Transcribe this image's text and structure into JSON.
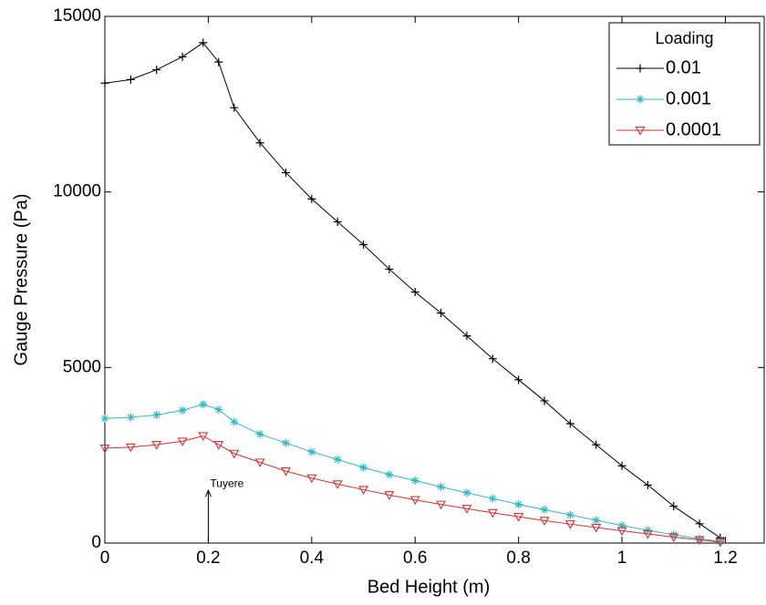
{
  "chart_data": {
    "type": "line",
    "x_label": "Bed Height (m)",
    "y_label": "Gauge Pressure (Pa)",
    "x": [
      0,
      0.05,
      0.1,
      0.15,
      0.19,
      0.22,
      0.25,
      0.3,
      0.35,
      0.4,
      0.45,
      0.5,
      0.55,
      0.6,
      0.65,
      0.7,
      0.75,
      0.8,
      0.85,
      0.9,
      0.95,
      1.0,
      1.05,
      1.1,
      1.15,
      1.19
    ],
    "series": [
      {
        "name": "0.01",
        "color": "#000000",
        "marker": "plus",
        "values": [
          13100,
          13200,
          13480,
          13850,
          14250,
          13700,
          12400,
          11400,
          10550,
          9800,
          9150,
          8500,
          7800,
          7150,
          6550,
          5900,
          5250,
          4650,
          4050,
          3400,
          2800,
          2200,
          1650,
          1050,
          550,
          150
        ]
      },
      {
        "name": "0.001",
        "color": "#33b8c0",
        "marker": "star",
        "values": [
          3550,
          3580,
          3650,
          3780,
          3950,
          3800,
          3450,
          3100,
          2850,
          2600,
          2380,
          2150,
          1950,
          1780,
          1600,
          1430,
          1270,
          1100,
          950,
          800,
          650,
          500,
          360,
          240,
          120,
          50
        ]
      },
      {
        "name": "0.0001",
        "color": "#d83030",
        "marker": "triangle-down",
        "values": [
          2700,
          2730,
          2800,
          2900,
          3050,
          2800,
          2550,
          2300,
          2050,
          1850,
          1680,
          1520,
          1370,
          1230,
          1100,
          980,
          860,
          750,
          640,
          540,
          440,
          350,
          260,
          170,
          90,
          30
        ]
      }
    ],
    "legend_title": "Loading",
    "legend": "upper right",
    "annotation": {
      "text": "Tuyere",
      "x": 0.2,
      "y": 1500
    },
    "xlim": [
      0,
      1.275
    ],
    "xticks": [
      0,
      0.2,
      0.4,
      0.6,
      0.8,
      1,
      1.2
    ],
    "ylim": [
      0,
      15000
    ],
    "yticks": [
      0,
      5000,
      10000,
      15000
    ],
    "grid": false
  }
}
